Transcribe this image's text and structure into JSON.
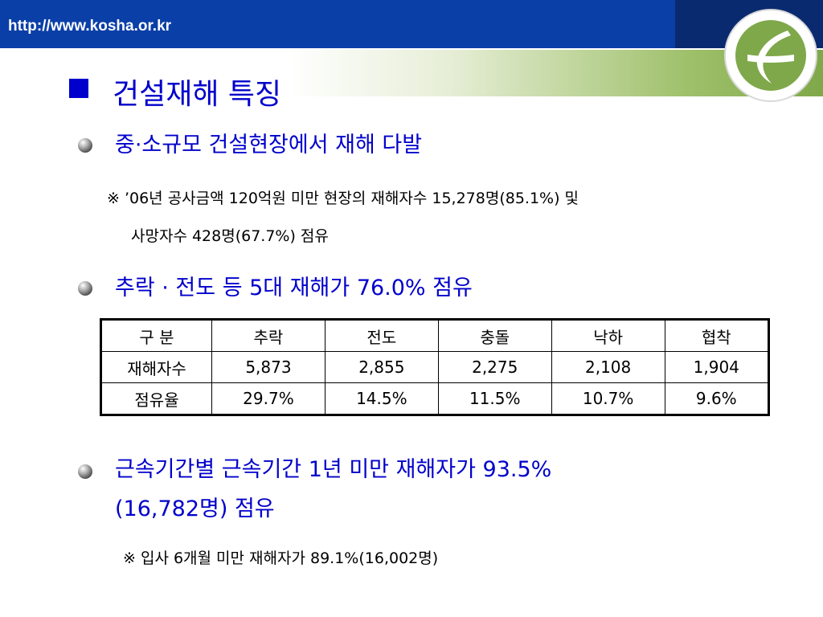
{
  "header": {
    "url": "http://www.kosha.or.kr"
  },
  "title": "건설재해 특징",
  "sections": [
    {
      "heading": "중·소규모 건설현장에서 재해 다발",
      "note_lines": [
        "※ ’06년 공사금액 120억원  미만 현장의 재해자수  15,278명(85.1%)  및",
        "사망자수 428명(67.7%) 점유"
      ]
    },
    {
      "heading": "추락 · 전도 등 5대 재해가 76.0% 점유"
    },
    {
      "heading_lines": [
        "근속기간별 근속기간 1년 미만 재해자가 93.5%",
        "(16,782명) 점유"
      ],
      "note": "※  입사 6개월 미만 재해자가 89.1%(16,002명)"
    }
  ],
  "table": {
    "headers": [
      "구 분",
      "추락",
      "전도",
      "충돌",
      "낙하",
      "협착"
    ],
    "rows": [
      [
        "재해자수",
        "5,873",
        "2,855",
        "2,275",
        "2,108",
        "1,904"
      ],
      [
        "점유율",
        "29.7%",
        "14.5%",
        "11.5%",
        "10.7%",
        "9.6%"
      ]
    ]
  },
  "colors": {
    "accent_blue": "#0000cc",
    "header_bar": "#0a3fa8",
    "logo_green": "#7fa84a"
  }
}
